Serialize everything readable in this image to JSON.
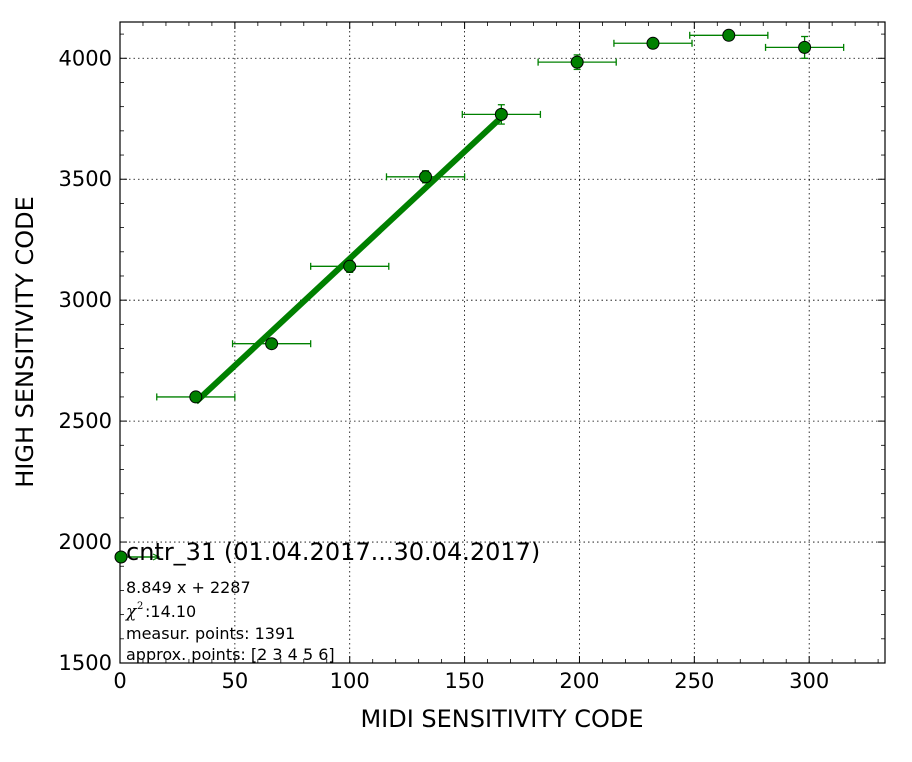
{
  "chart_data": {
    "type": "scatter",
    "xlabel": "MIDI SENSITIVITY CODE",
    "ylabel": "HIGH SENSITIVITY CODE",
    "xlim": [
      0,
      333
    ],
    "ylim": [
      1500,
      4150
    ],
    "xticks": [
      0,
      50,
      100,
      150,
      200,
      250,
      300
    ],
    "yticks": [
      1500,
      2000,
      2500,
      3000,
      3500,
      4000
    ],
    "grid": true,
    "color": "#008000",
    "legend_placement": "lower-left",
    "series": [
      {
        "name": "cntr_31 (01.04.2017...30.04.2017)",
        "points": [
          {
            "x": 33,
            "y": 2600,
            "xerr": 17,
            "yerr": 8
          },
          {
            "x": 66,
            "y": 2820,
            "xerr": 17,
            "yerr": 10
          },
          {
            "x": 100,
            "y": 3140,
            "xerr": 17,
            "yerr": 25
          },
          {
            "x": 133,
            "y": 3510,
            "xerr": 17,
            "yerr": 25
          },
          {
            "x": 166,
            "y": 3768,
            "xerr": 17,
            "yerr": 40
          },
          {
            "x": 199,
            "y": 3984,
            "xerr": 17,
            "yerr": 30
          },
          {
            "x": 232,
            "y": 4062,
            "xerr": 17,
            "yerr": 10
          },
          {
            "x": 265,
            "y": 4095,
            "xerr": 17,
            "yerr": 10
          },
          {
            "x": 298,
            "y": 4045,
            "xerr": 17,
            "yerr": 45
          }
        ]
      }
    ],
    "fit": {
      "slope": 8.849,
      "intercept": 2287,
      "x_range": [
        33,
        166
      ]
    },
    "annotations": {
      "equation": "8.849 x + 2287",
      "chi_symbol": "χ",
      "chi_power": "2",
      "chi_value": " :14.10",
      "measured": "measur. points: 1391",
      "approx": "approx. points: [2 3 4 5 6]"
    }
  }
}
